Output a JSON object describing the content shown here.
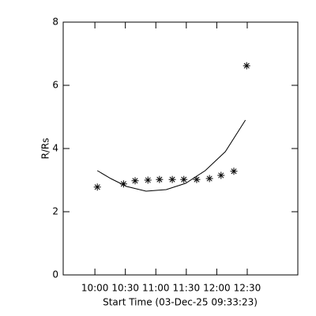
{
  "chart_data": {
    "type": "scatter",
    "xlabel": "Start Time (03-Dec-25 09:33:23)",
    "ylabel": "R/Rs",
    "xlim": [
      9.48,
      13.33
    ],
    "ylim": [
      0,
      8
    ],
    "xticks": [
      {
        "value": 10.0,
        "label": "10:00"
      },
      {
        "value": 10.5,
        "label": "10:30"
      },
      {
        "value": 11.0,
        "label": "11:00"
      },
      {
        "value": 11.5,
        "label": "11:30"
      },
      {
        "value": 12.0,
        "label": "12:00"
      },
      {
        "value": 12.5,
        "label": "12:30"
      }
    ],
    "yticks": [
      0,
      2,
      4,
      6,
      8
    ],
    "color": "#000000",
    "series": [
      {
        "mode": "markers",
        "x": [
          10.04,
          10.47,
          10.66,
          10.87,
          11.06,
          11.27,
          11.46,
          11.67,
          11.88,
          12.07,
          12.28,
          12.49
        ],
        "values": [
          2.78,
          2.88,
          2.98,
          3.0,
          3.02,
          3.02,
          3.02,
          3.02,
          3.05,
          3.15,
          3.28,
          6.62
        ]
      },
      {
        "mode": "line",
        "x": [
          10.04,
          10.26,
          10.52,
          10.84,
          11.17,
          11.49,
          11.81,
          12.14,
          12.47
        ],
        "values": [
          3.3,
          3.05,
          2.8,
          2.65,
          2.7,
          2.9,
          3.3,
          3.9,
          4.9
        ]
      }
    ]
  }
}
